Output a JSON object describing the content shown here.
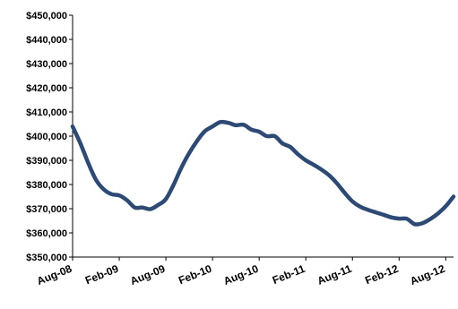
{
  "chart_data": {
    "type": "line",
    "title": "",
    "xlabel": "",
    "ylabel": "",
    "ylim": [
      350000,
      450000
    ],
    "y_tick_labels": [
      "$350,000",
      "$360,000",
      "$370,000",
      "$380,000",
      "$390,000",
      "$400,000",
      "$410,000",
      "$420,000",
      "$430,000",
      "$440,000",
      "$450,000"
    ],
    "x_tick_labels": [
      "Aug-08",
      "Feb-09",
      "Aug-09",
      "Feb-10",
      "Aug-10",
      "Feb-11",
      "Aug-11",
      "Feb-12",
      "Aug-12"
    ],
    "grid": false,
    "legend": "none",
    "series": [
      {
        "color": "#2b4a78",
        "points": [
          [
            "Aug-08",
            404000
          ],
          [
            "Sep-08",
            397000
          ],
          [
            "Oct-08",
            389000
          ],
          [
            "Nov-08",
            382000
          ],
          [
            "Dec-08",
            378000
          ],
          [
            "Jan-09",
            376000
          ],
          [
            "Feb-09",
            375500
          ],
          [
            "Mar-09",
            373500
          ],
          [
            "Apr-09",
            370500
          ],
          [
            "May-09",
            370500
          ],
          [
            "Jun-09",
            369800
          ],
          [
            "Jul-09",
            371500
          ],
          [
            "Aug-09",
            374000
          ],
          [
            "Sep-09",
            380000
          ],
          [
            "Oct-09",
            387000
          ],
          [
            "Nov-09",
            393000
          ],
          [
            "Dec-09",
            398000
          ],
          [
            "Jan-10",
            402000
          ],
          [
            "Feb-10",
            404000
          ],
          [
            "Mar-10",
            405800
          ],
          [
            "Apr-10",
            405500
          ],
          [
            "May-10",
            404500
          ],
          [
            "Jun-10",
            404700
          ],
          [
            "Jul-10",
            402700
          ],
          [
            "Aug-10",
            401800
          ],
          [
            "Sep-10",
            400000
          ],
          [
            "Oct-10",
            400000
          ],
          [
            "Nov-10",
            397000
          ],
          [
            "Dec-10",
            395500
          ],
          [
            "Jan-11",
            392500
          ],
          [
            "Feb-11",
            390000
          ],
          [
            "Mar-11",
            388200
          ],
          [
            "Apr-11",
            386200
          ],
          [
            "May-11",
            383800
          ],
          [
            "Jun-11",
            380500
          ],
          [
            "Jul-11",
            376500
          ],
          [
            "Aug-11",
            373000
          ],
          [
            "Sep-11",
            370800
          ],
          [
            "Oct-11",
            369500
          ],
          [
            "Nov-11",
            368500
          ],
          [
            "Dec-11",
            367500
          ],
          [
            "Jan-12",
            366400
          ],
          [
            "Feb-12",
            365900
          ],
          [
            "Mar-12",
            365800
          ],
          [
            "Apr-12",
            363600
          ],
          [
            "May-12",
            364000
          ],
          [
            "Jun-12",
            365700
          ],
          [
            "Jul-12",
            368000
          ],
          [
            "Aug-12",
            371000
          ],
          [
            "Sep-12",
            375000
          ]
        ]
      }
    ]
  }
}
